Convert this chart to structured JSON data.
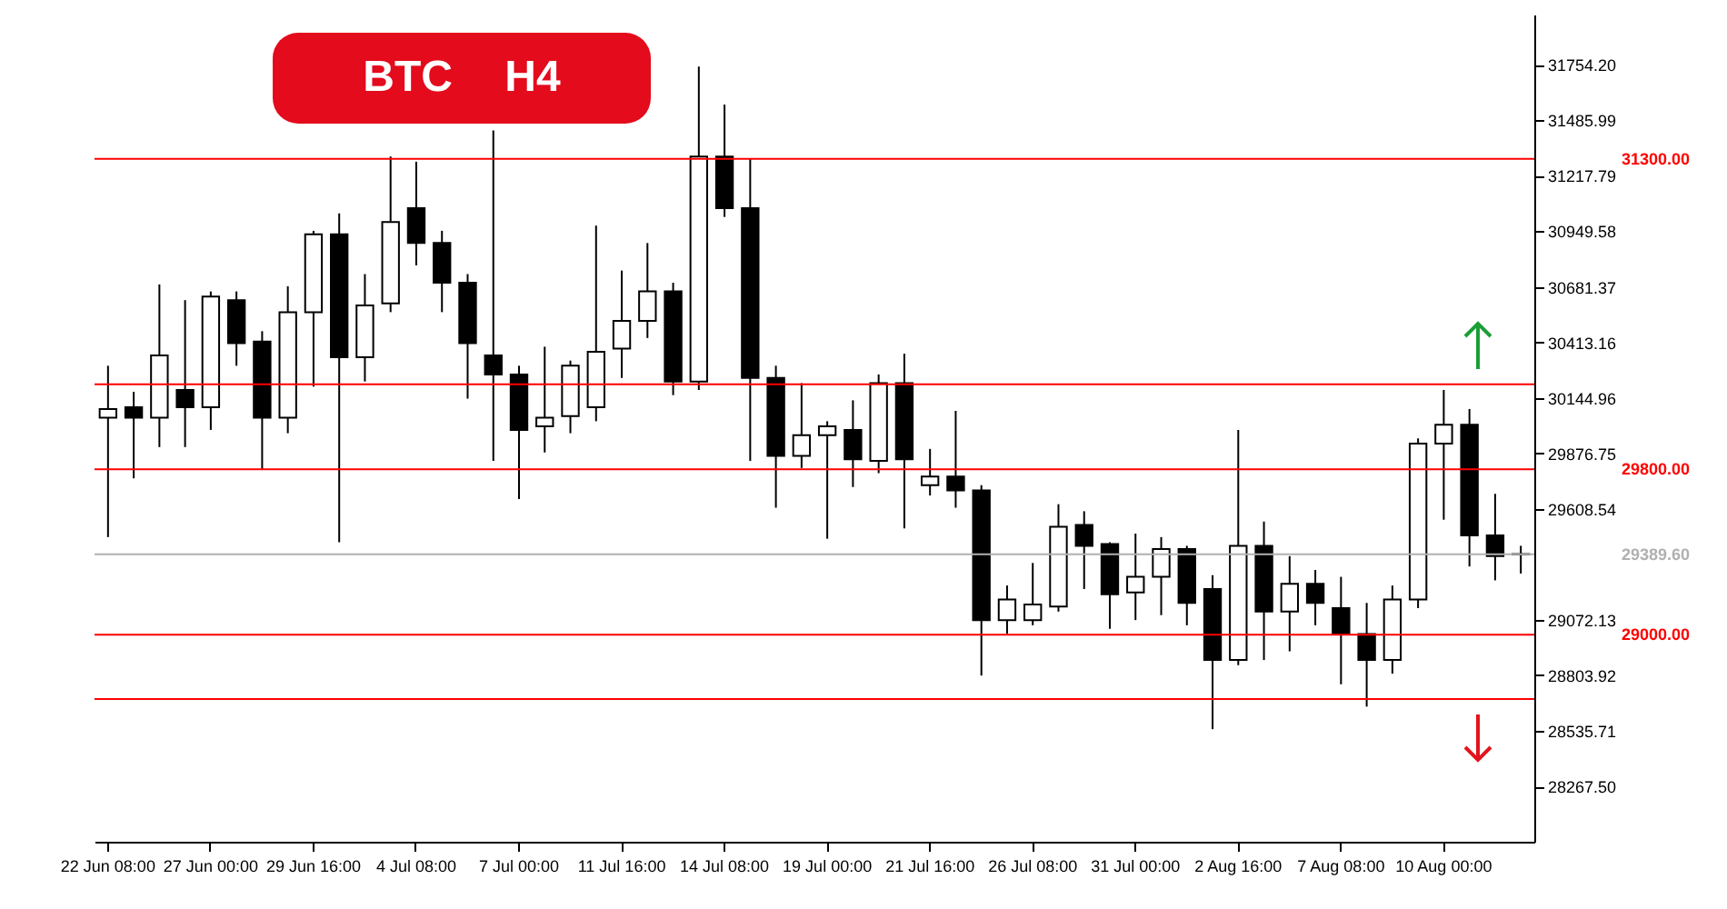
{
  "chart_data": {
    "type": "candlestick",
    "title": "BTC H4",
    "categories": [
      "22 Jun 08:00",
      null,
      null,
      null,
      "27 Jun 00:00",
      null,
      null,
      null,
      "29 Jun 16:00",
      null,
      null,
      null,
      "4 Jul 08:00",
      null,
      null,
      null,
      "7 Jul 00:00",
      null,
      null,
      null,
      "11 Jul 16:00",
      null,
      null,
      null,
      "14 Jul 08:00",
      null,
      null,
      null,
      "19 Jul 00:00",
      null,
      null,
      null,
      "21 Jul 16:00",
      null,
      null,
      null,
      "26 Jul 08:00",
      null,
      null,
      null,
      "31 Jul 00:00",
      null,
      null,
      null,
      "2 Aug 16:00",
      null,
      null,
      null,
      "7 Aug 08:00",
      null,
      null,
      null,
      "10 Aug 00:00",
      null,
      null,
      null
    ],
    "ohlc": [
      [
        30049,
        30300,
        29472,
        30091
      ],
      [
        30099,
        30174,
        29756,
        30049
      ],
      [
        30049,
        30693,
        29907,
        30350
      ],
      [
        30183,
        30617,
        29907,
        30099
      ],
      [
        30099,
        30659,
        29990,
        30634
      ],
      [
        30617,
        30659,
        30300,
        30409
      ],
      [
        30417,
        30467,
        29798,
        30049
      ],
      [
        30049,
        30684,
        29974,
        30559
      ],
      [
        30559,
        30952,
        30199,
        30935
      ],
      [
        30935,
        31036,
        29447,
        30341
      ],
      [
        30341,
        30743,
        30224,
        30592
      ],
      [
        30601,
        31311,
        30559,
        30994
      ],
      [
        31061,
        31286,
        30785,
        30893
      ],
      [
        30893,
        30952,
        30559,
        30701
      ],
      [
        30701,
        30743,
        30141,
        30409
      ],
      [
        30350,
        31437,
        29840,
        30258
      ],
      [
        30258,
        30300,
        29656,
        29990
      ],
      [
        30007,
        30392,
        29881,
        30049
      ],
      [
        30057,
        30325,
        29974,
        30300
      ],
      [
        30099,
        30977,
        30032,
        30367
      ],
      [
        30383,
        30760,
        30241,
        30517
      ],
      [
        30517,
        30893,
        30434,
        30659
      ],
      [
        30659,
        30701,
        30158,
        30224
      ],
      [
        30224,
        31746,
        30183,
        31311
      ],
      [
        31311,
        31562,
        31019,
        31061
      ],
      [
        31061,
        31303,
        29840,
        30241
      ],
      [
        30241,
        30300,
        29614,
        29865
      ],
      [
        29865,
        30216,
        29806,
        29965
      ],
      [
        29965,
        30032,
        29464,
        30007
      ],
      [
        29990,
        30133,
        29714,
        29848
      ],
      [
        29840,
        30258,
        29781,
        30216
      ],
      [
        30216,
        30358,
        29514,
        29848
      ],
      [
        29723,
        29898,
        29673,
        29765
      ],
      [
        29765,
        30082,
        29614,
        29698
      ],
      [
        29698,
        29723,
        28803,
        29071
      ],
      [
        29071,
        29238,
        29004,
        29171
      ],
      [
        29071,
        29347,
        29046,
        29146
      ],
      [
        29137,
        29631,
        29112,
        29522
      ],
      [
        29531,
        29597,
        29221,
        29430
      ],
      [
        29439,
        29447,
        29029,
        29196
      ],
      [
        29205,
        29489,
        29071,
        29280
      ],
      [
        29280,
        29472,
        29095,
        29414
      ],
      [
        29414,
        29430,
        29046,
        29154
      ],
      [
        29221,
        29288,
        28544,
        28878
      ],
      [
        28878,
        29990,
        28853,
        29430
      ],
      [
        29430,
        29547,
        28878,
        29112
      ],
      [
        29112,
        29380,
        28920,
        29246
      ],
      [
        29246,
        29313,
        29046,
        29154
      ],
      [
        29129,
        29280,
        28761,
        29004
      ],
      [
        29004,
        29154,
        28653,
        28878
      ],
      [
        28878,
        29238,
        28812,
        29171
      ],
      [
        29171,
        29949,
        29129,
        29924
      ],
      [
        29924,
        30183,
        29556,
        30015
      ],
      [
        30015,
        30091,
        29330,
        29480
      ],
      [
        29480,
        29681,
        29263,
        29380
      ],
      [
        29388,
        29430,
        29296,
        29390
      ]
    ],
    "ylim": [
      28000,
      31997
    ],
    "yticks": [
      {
        "value": 31754.2,
        "label": "31754.20"
      },
      {
        "value": 31485.99,
        "label": "31485.99"
      },
      {
        "value": 31217.79,
        "label": "31217.79"
      },
      {
        "value": 30949.58,
        "label": "30949.58"
      },
      {
        "value": 30681.37,
        "label": "30681.37"
      },
      {
        "value": 30413.16,
        "label": "30413.16"
      },
      {
        "value": 30144.96,
        "label": "30144.96"
      },
      {
        "value": 29876.75,
        "label": "29876.75"
      },
      {
        "value": 29608.54,
        "label": "29608.54"
      },
      {
        "value": 29072.13,
        "label": "29072.13"
      },
      {
        "value": 28803.92,
        "label": "28803.92"
      },
      {
        "value": 28535.71,
        "label": "28535.71"
      },
      {
        "value": 28267.5,
        "label": "28267.50"
      }
    ],
    "ref_lines": [
      {
        "axis": "y",
        "value": 31300,
        "label": "31300.00",
        "color": "#ff0000"
      },
      {
        "axis": "y",
        "value": 30210,
        "color": "#ff0000"
      },
      {
        "axis": "y",
        "value": 29800,
        "label": "29800.00",
        "color": "#ff0000"
      },
      {
        "axis": "y",
        "value": 29389.6,
        "label": "29389.60",
        "color": "#b0b0b0"
      },
      {
        "axis": "y",
        "value": 29000,
        "label": "29000.00",
        "color": "#ff0000"
      },
      {
        "axis": "y",
        "value": 28690,
        "color": "#ff0000"
      }
    ]
  }
}
